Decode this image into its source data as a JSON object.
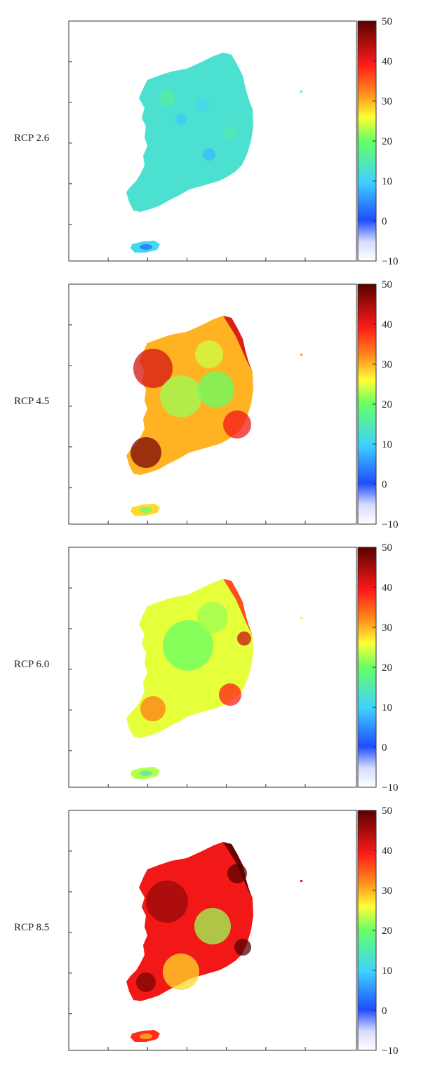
{
  "figure": {
    "colorbar": {
      "min": -10,
      "max": 50,
      "ticks": [
        "50",
        "40",
        "30",
        "20",
        "10",
        "0",
        "−10"
      ],
      "colormap": "jet",
      "colors": [
        "#ffffff",
        "#1f4cff",
        "#3fd2ff",
        "#66ff66",
        "#ffff33",
        "#ff8c1a",
        "#ff1a1a",
        "#5a0000"
      ]
    },
    "panels": [
      {
        "label": "RCP 2.6",
        "level": 13,
        "hotspots": "low"
      },
      {
        "label": "RCP 4.5",
        "level": 30,
        "hotspots": "warm"
      },
      {
        "label": "RCP 6.0",
        "level": 25,
        "hotspots": "mild"
      },
      {
        "label": "RCP 8.5",
        "level": 40,
        "hotspots": "hot"
      }
    ]
  }
}
